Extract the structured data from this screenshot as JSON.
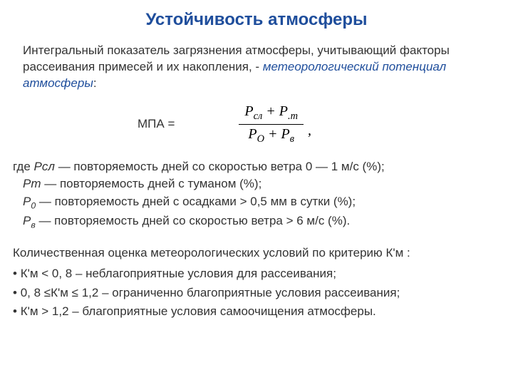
{
  "title": "Устойчивость атмосферы",
  "intro_text": "Интегральный показатель загрязнения атмосферы, учитывающий факторы рассеивания примесей и их накопления, - ",
  "intro_term": "метеорологический потенциал атмосферы",
  "intro_tail": ":",
  "formula_label": "МПА =",
  "formula": {
    "num_a": "P",
    "num_a_sub": "сл",
    "num_plus": " + ",
    "num_b": "P",
    "num_b_sub": ".m",
    "den_a": "P",
    "den_a_sub": "О",
    "den_plus": " + ",
    "den_b": "P",
    "den_b_sub": "в"
  },
  "formula_comma": ",",
  "defs": {
    "where": "где ",
    "line1_sym": "Pсл",
    "line1_rest": " — повторяемость дней со скоростью ветра 0 — 1 м/с (%);",
    "line2_sym": "Pm",
    "line2_rest": " — повторяемость дней с туманом (%);",
    "line3_sym_a": "P",
    "line3_sub": "0",
    "line3_rest": " — повторяемость дней с осадками > 0,5 мм в сутки (%);",
    "line4_sym_a": "P",
    "line4_sub": "в",
    "line4_rest": " — повторяемость дней со скоростью ветра > 6 м/с (%)."
  },
  "criteria_title": "Количественная оценка метеорологических условий по критерию К'м :",
  "criteria": {
    "c1": "К'м < 0, 8 – неблагоприятные условия для рассеивания;",
    "c2": "0, 8 ≤К'м ≤ 1,2 – ограниченно благоприятные условия рассеивания;",
    "c3": "К'м > 1,2 – благоприятные условия самоочищения атмосферы."
  },
  "colors": {
    "title": "#1f4e9c",
    "term": "#1f4e9c",
    "text": "#333333",
    "formula": "#000000",
    "background": "#ffffff"
  }
}
